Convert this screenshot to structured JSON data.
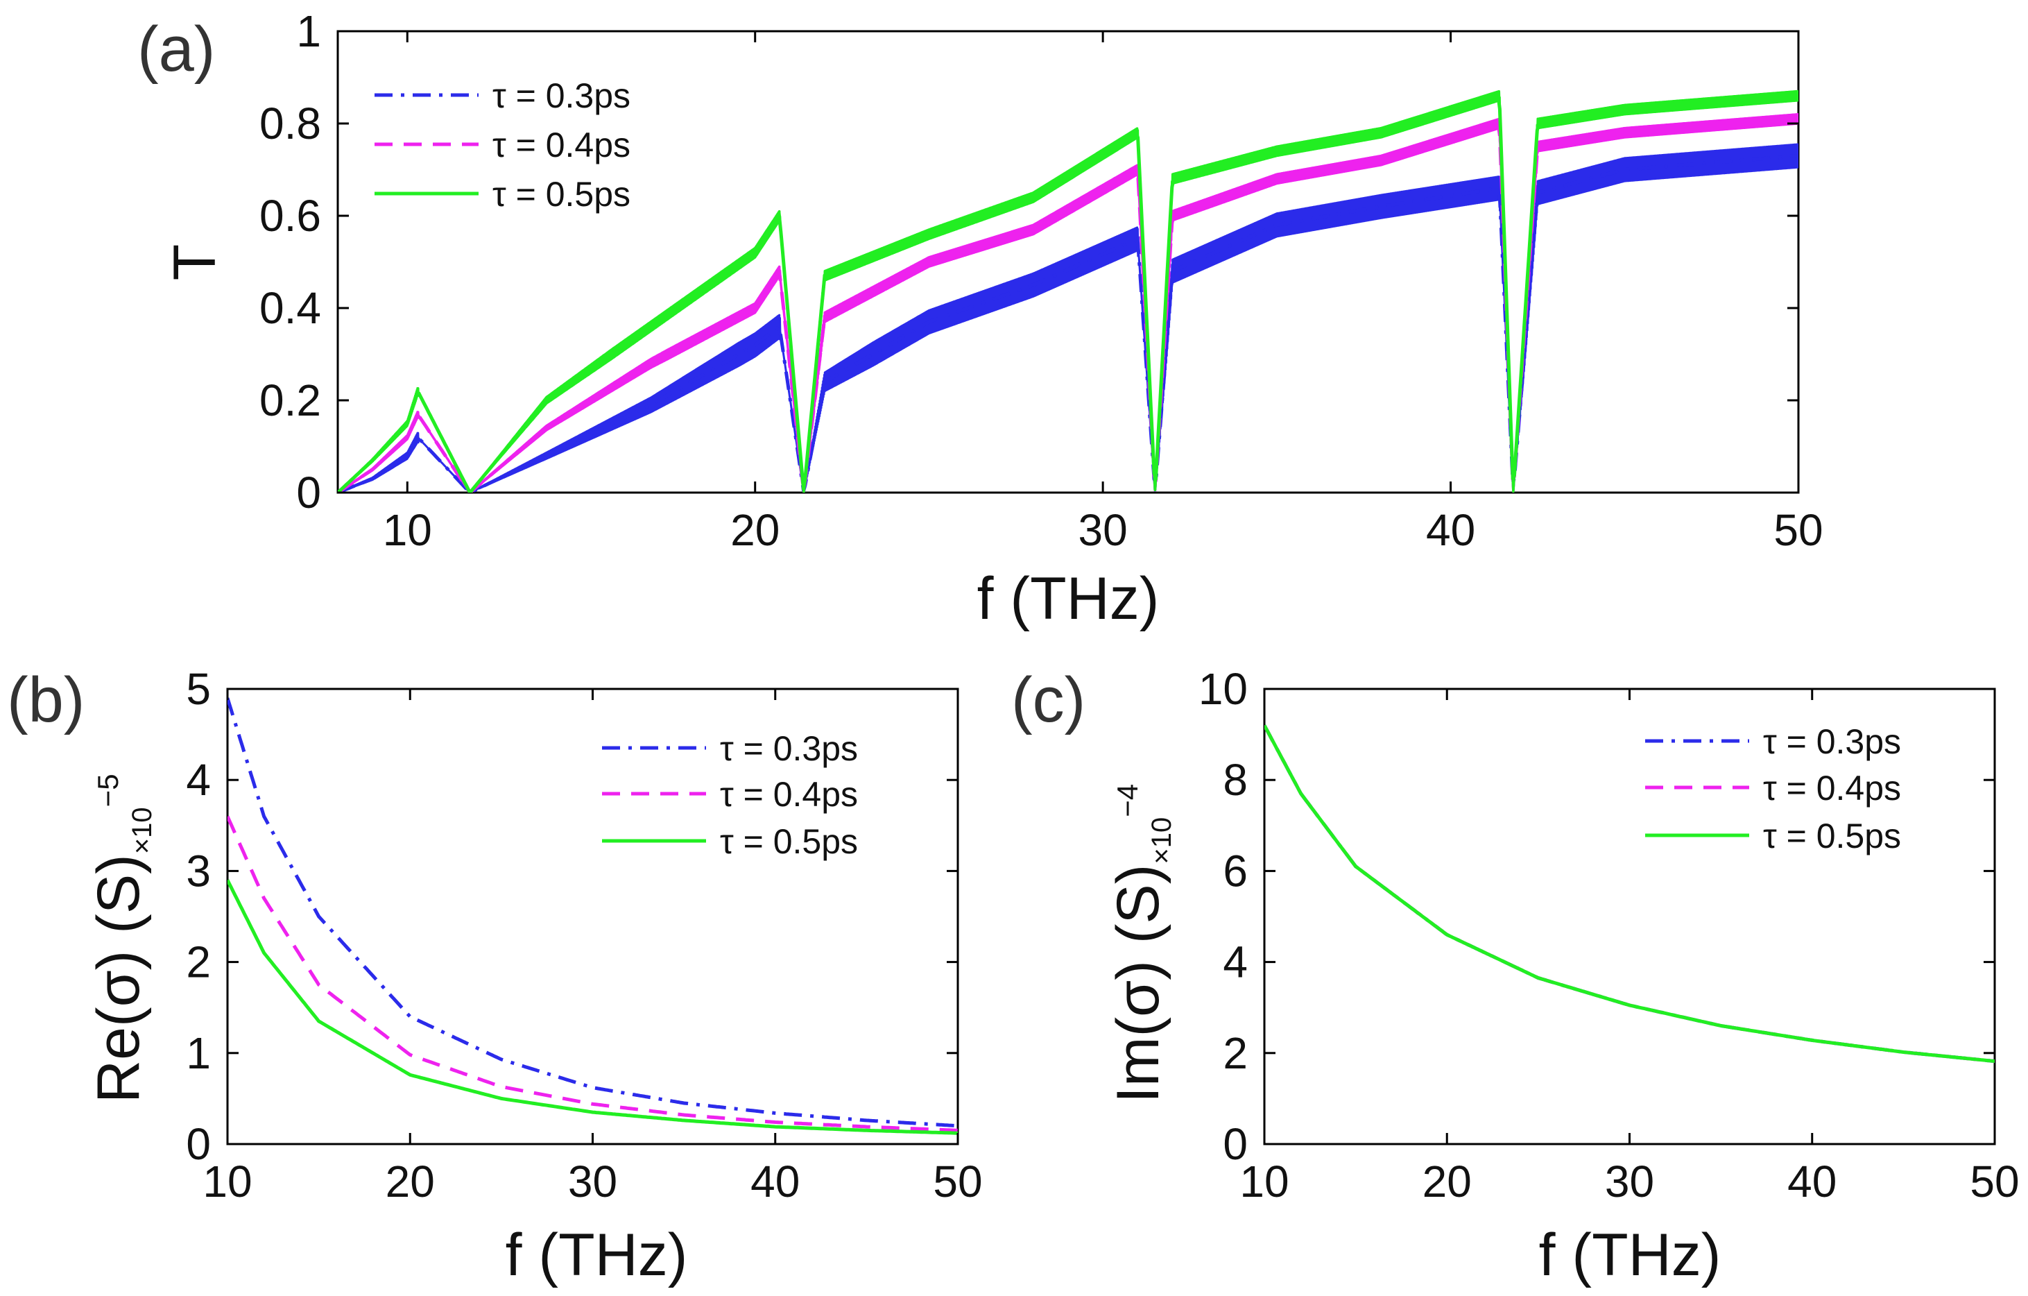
{
  "figure": {
    "panel_labels": [
      "(a)",
      "(b)",
      "(c)"
    ]
  },
  "colors": {
    "tau03": "#2b2bea",
    "tau04": "#ee22ee",
    "tau05": "#22ee22",
    "axis": "#000000"
  },
  "legend": {
    "tau03": "τ = 0.3ps",
    "tau04": "τ = 0.4ps",
    "tau05": "τ = 0.5ps"
  },
  "chart_data": [
    {
      "id": "a",
      "type": "line",
      "title": "",
      "xlabel": "f (THz)",
      "ylabel": "T",
      "xlim": [
        8,
        50
      ],
      "ylim": [
        0,
        1
      ],
      "xticks": [
        10,
        20,
        30,
        40,
        50
      ],
      "yticks": [
        0,
        0.2,
        0.4,
        0.6,
        0.8,
        1
      ],
      "ytick_labels": [
        "0",
        "0.2",
        "0.4",
        "0.6",
        "0.8",
        "1"
      ],
      "legend_position": "top-left",
      "band_gaps_thz": [
        [
          10.3,
          11.8
        ],
        [
          20.7,
          21.4
        ],
        [
          31.0,
          31.5
        ],
        [
          41.4,
          41.8
        ]
      ],
      "series": [
        {
          "name": "τ = 0.3ps",
          "style": "dash-dot",
          "color_key": "tau03",
          "x": [
            8,
            9,
            10,
            10.3,
            11.8,
            14,
            17,
            20,
            20.7,
            21.4,
            22,
            25,
            28,
            31,
            31.5,
            32,
            35,
            38,
            41.4,
            41.8,
            42.5,
            45,
            50
          ],
          "y": [
            0,
            0.03,
            0.08,
            0.12,
            0,
            0.08,
            0.19,
            0.32,
            0.36,
            0,
            0.24,
            0.37,
            0.45,
            0.55,
            0,
            0.48,
            0.58,
            0.62,
            0.66,
            0,
            0.65,
            0.7,
            0.73
          ],
          "oscillation_amplitude": 0.05
        },
        {
          "name": "τ = 0.4ps",
          "style": "dashed",
          "color_key": "tau04",
          "x": [
            8,
            9,
            10,
            10.3,
            11.8,
            14,
            17,
            20,
            20.7,
            21.4,
            22,
            25,
            28,
            31,
            31.5,
            32,
            35,
            38,
            41.4,
            41.8,
            42.5,
            45,
            50
          ],
          "y": [
            0,
            0.05,
            0.12,
            0.17,
            0,
            0.14,
            0.28,
            0.4,
            0.48,
            0,
            0.38,
            0.5,
            0.57,
            0.7,
            0,
            0.6,
            0.68,
            0.72,
            0.8,
            0,
            0.75,
            0.78,
            0.81
          ],
          "oscillation_amplitude": 0.02
        },
        {
          "name": "τ = 0.5ps",
          "style": "solid",
          "color_key": "tau05",
          "x": [
            8,
            9,
            10,
            10.3,
            11.8,
            14,
            17,
            20,
            20.7,
            21.4,
            22,
            25,
            28,
            31,
            31.5,
            32,
            35,
            38,
            41.4,
            41.8,
            42.5,
            45,
            50
          ],
          "y": [
            0,
            0.07,
            0.15,
            0.22,
            0,
            0.2,
            0.36,
            0.52,
            0.6,
            0,
            0.47,
            0.56,
            0.64,
            0.78,
            0,
            0.68,
            0.74,
            0.78,
            0.86,
            0,
            0.8,
            0.83,
            0.86
          ],
          "oscillation_amplitude": 0.02
        }
      ]
    },
    {
      "id": "b",
      "type": "line",
      "title": "",
      "xlabel": "f (THz)",
      "ylabel": "Re(σ) (S)",
      "ylabel_scale": "×10",
      "ylabel_exponent": "−5",
      "xlim": [
        10,
        50
      ],
      "ylim": [
        0,
        5
      ],
      "xticks": [
        10,
        20,
        30,
        40,
        50
      ],
      "yticks": [
        0,
        1,
        2,
        3,
        4,
        5
      ],
      "ytick_labels": [
        "0",
        "1",
        "2",
        "3",
        "4",
        "5"
      ],
      "legend_position": "top-right",
      "series": [
        {
          "name": "τ = 0.3ps",
          "style": "dash-dot",
          "color_key": "tau03",
          "x": [
            10,
            12,
            15,
            20,
            25,
            30,
            35,
            40,
            45,
            50
          ],
          "y": [
            4.9,
            3.6,
            2.5,
            1.4,
            0.93,
            0.62,
            0.45,
            0.34,
            0.26,
            0.2
          ]
        },
        {
          "name": "τ = 0.4ps",
          "style": "dashed",
          "color_key": "tau04",
          "x": [
            10,
            12,
            15,
            20,
            25,
            30,
            35,
            40,
            45,
            50
          ],
          "y": [
            3.6,
            2.7,
            1.75,
            0.98,
            0.63,
            0.44,
            0.32,
            0.24,
            0.19,
            0.15
          ]
        },
        {
          "name": "τ = 0.5ps",
          "style": "solid",
          "color_key": "tau05",
          "x": [
            10,
            12,
            15,
            20,
            25,
            30,
            35,
            40,
            45,
            50
          ],
          "y": [
            2.9,
            2.1,
            1.35,
            0.76,
            0.5,
            0.35,
            0.26,
            0.19,
            0.15,
            0.12
          ]
        }
      ]
    },
    {
      "id": "c",
      "type": "line",
      "title": "",
      "xlabel": "f (THz)",
      "ylabel": "Im(σ) (S)",
      "ylabel_scale": "×10",
      "ylabel_exponent": "−4",
      "xlim": [
        10,
        50
      ],
      "ylim": [
        0,
        10
      ],
      "xticks": [
        10,
        20,
        30,
        40,
        50
      ],
      "yticks": [
        0,
        2,
        4,
        6,
        8,
        10
      ],
      "ytick_labels": [
        "0",
        "2",
        "4",
        "6",
        "8",
        "10"
      ],
      "legend_position": "top-right",
      "series": [
        {
          "name": "τ = 0.3ps",
          "style": "dash-dot",
          "color_key": "tau03",
          "x": [
            10,
            12,
            15,
            20,
            25,
            30,
            35,
            40,
            45,
            50
          ],
          "y": [
            9.2,
            7.7,
            6.1,
            4.6,
            3.65,
            3.05,
            2.6,
            2.28,
            2.02,
            1.82
          ]
        },
        {
          "name": "τ = 0.4ps",
          "style": "dashed",
          "color_key": "tau04",
          "x": [
            10,
            12,
            15,
            20,
            25,
            30,
            35,
            40,
            45,
            50
          ],
          "y": [
            9.2,
            7.7,
            6.1,
            4.6,
            3.65,
            3.05,
            2.6,
            2.28,
            2.02,
            1.82
          ]
        },
        {
          "name": "τ = 0.5ps",
          "style": "solid",
          "color_key": "tau05",
          "x": [
            10,
            12,
            15,
            20,
            25,
            30,
            35,
            40,
            45,
            50
          ],
          "y": [
            9.2,
            7.7,
            6.1,
            4.6,
            3.65,
            3.05,
            2.6,
            2.28,
            2.02,
            1.82
          ]
        }
      ]
    }
  ]
}
